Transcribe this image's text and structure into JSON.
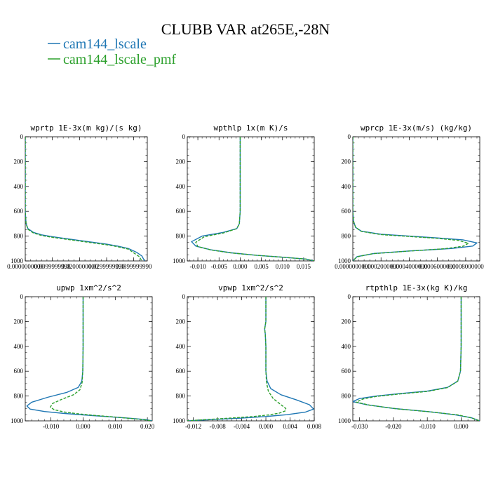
{
  "figure": {
    "title": "CLUBB VAR at265E,-28N",
    "legend": [
      {
        "label": "cam144_lscale",
        "color": "#1f77b4",
        "dash": "solid"
      },
      {
        "label": "cam144_lscale_pmf",
        "color": "#2ca02c",
        "dash": "dashed"
      }
    ]
  },
  "chart_data": [
    {
      "type": "line",
      "title": "wprtp  1E-3x(m kg)/(s kg)",
      "xlim": [
        0,
        0.045
      ],
      "ylim": [
        0,
        1000
      ],
      "y_inverted": true,
      "xticks": [
        0,
        0.01,
        0.02,
        0.03,
        0.04
      ],
      "xtick_labels": [
        "0.0000000000",
        "0.0099999998",
        "0.0200000000",
        "0.0299999990",
        "0.0399999990"
      ],
      "yticks": [
        0,
        200,
        400,
        600,
        800,
        1000
      ],
      "ytick_labels": [
        "0",
        "200",
        "400",
        "600",
        "800",
        "1000"
      ],
      "series": [
        {
          "name": "cam144_lscale",
          "x": [
            0,
            0,
            0,
            0,
            0.0003,
            0.001,
            0.003,
            0.006,
            0.01,
            0.015,
            0.02,
            0.025,
            0.03,
            0.034,
            0.038,
            0.041,
            0.043,
            0.044
          ],
          "y": [
            0,
            200,
            400,
            600,
            700,
            740,
            770,
            790,
            805,
            820,
            835,
            850,
            865,
            880,
            900,
            930,
            960,
            1000
          ]
        },
        {
          "name": "cam144_lscale_pmf",
          "x": [
            0,
            0,
            0,
            0,
            0.0003,
            0.001,
            0.003,
            0.006,
            0.01,
            0.015,
            0.02,
            0.025,
            0.03,
            0.034,
            0.038,
            0.04,
            0.042,
            0.043
          ],
          "y": [
            0,
            200,
            400,
            600,
            700,
            745,
            775,
            795,
            810,
            825,
            840,
            855,
            870,
            885,
            905,
            935,
            965,
            1000
          ]
        }
      ]
    },
    {
      "type": "line",
      "title": "wpthlp  1x(m K)/s",
      "xlim": [
        -0.0125,
        0.0175
      ],
      "ylim": [
        0,
        1000
      ],
      "y_inverted": true,
      "xticks": [
        -0.01,
        -0.005,
        0,
        0.005,
        0.01,
        0.015
      ],
      "xtick_labels": [
        "-0.010",
        "-0.005",
        "0.000",
        "0.005",
        "0.010",
        "0.015"
      ],
      "yticks": [
        0,
        200,
        400,
        600,
        800,
        1000
      ],
      "ytick_labels": [
        "0",
        "200",
        "400",
        "600",
        "800",
        "1000"
      ],
      "series": [
        {
          "name": "cam144_lscale",
          "x": [
            0,
            0,
            0,
            0,
            -0.0002,
            -0.0008,
            -0.004,
            -0.009,
            -0.0115,
            -0.0105,
            -0.007,
            -0.002,
            0.004,
            0.01,
            0.0155,
            0.0175
          ],
          "y": [
            0,
            200,
            400,
            600,
            700,
            740,
            770,
            800,
            845,
            880,
            910,
            935,
            955,
            970,
            985,
            1000
          ]
        },
        {
          "name": "cam144_lscale_pmf",
          "x": [
            0,
            0,
            0,
            0,
            -0.0002,
            -0.0008,
            -0.004,
            -0.0085,
            -0.0105,
            -0.01,
            -0.0068,
            -0.002,
            0.004,
            0.01,
            0.0155,
            0.0175
          ],
          "y": [
            0,
            200,
            400,
            600,
            700,
            740,
            775,
            805,
            850,
            885,
            912,
            936,
            955,
            970,
            985,
            1000
          ]
        }
      ]
    },
    {
      "type": "line",
      "title": "wprcp  1E-3x(m/s) (kg/kg)",
      "xlim": [
        0,
        0.0009
      ],
      "ylim": [
        0,
        1000
      ],
      "y_inverted": true,
      "xticks": [
        0,
        0.0002,
        0.0004,
        0.0006,
        0.0008
      ],
      "xtick_labels": [
        "0.0000000000",
        "0.0002000000",
        "0.0004000000",
        "0.0006000000",
        "0.0008000000"
      ],
      "yticks": [
        0,
        200,
        400,
        600,
        800,
        1000
      ],
      "ytick_labels": [
        "0",
        "200",
        "400",
        "600",
        "800",
        "1000"
      ],
      "series": [
        {
          "name": "cam144_lscale",
          "x": [
            0,
            0,
            0,
            0,
            5e-06,
            2e-05,
            6e-05,
            0.0002,
            0.0004,
            0.0006,
            0.00078,
            0.00088,
            0.00085,
            0.0007,
            0.0004,
            0.00015,
            3e-05,
            0
          ],
          "y": [
            0,
            200,
            400,
            600,
            680,
            730,
            760,
            785,
            800,
            815,
            830,
            855,
            880,
            900,
            920,
            940,
            965,
            1000
          ]
        },
        {
          "name": "cam144_lscale_pmf",
          "x": [
            0,
            0,
            0,
            0,
            5e-06,
            2e-05,
            6e-05,
            0.0002,
            0.0004,
            0.0006,
            0.00075,
            0.00082,
            0.00078,
            0.00065,
            0.00038,
            0.00014,
            3e-05,
            0
          ],
          "y": [
            0,
            200,
            400,
            600,
            680,
            730,
            762,
            788,
            803,
            818,
            835,
            858,
            882,
            902,
            922,
            942,
            967,
            1000
          ]
        }
      ]
    },
    {
      "type": "line",
      "title": "upwp  1xm^2/s^2",
      "xlim": [
        -0.018,
        0.0215
      ],
      "ylim": [
        0,
        1000
      ],
      "y_inverted": true,
      "xticks": [
        -0.01,
        0,
        0.01,
        0.02
      ],
      "xtick_labels": [
        "-0.010",
        "0.000",
        "0.010",
        "0.020"
      ],
      "yticks": [
        0,
        200,
        400,
        600,
        800,
        1000
      ],
      "ytick_labels": [
        "0",
        "200",
        "400",
        "600",
        "800",
        "1000"
      ],
      "series": [
        {
          "name": "cam144_lscale",
          "x": [
            0,
            0,
            0,
            -0.0001,
            -0.0004,
            -0.0015,
            -0.005,
            -0.011,
            -0.016,
            -0.0175,
            -0.0165,
            -0.012,
            -0.006,
            0,
            0.007,
            0.014,
            0.0195,
            0.0215
          ],
          "y": [
            0,
            200,
            400,
            600,
            680,
            730,
            770,
            810,
            850,
            880,
            905,
            925,
            940,
            952,
            965,
            978,
            990,
            1000
          ]
        },
        {
          "name": "cam144_lscale_pmf",
          "x": [
            0,
            0,
            0,
            -0.0001,
            -0.0003,
            -0.001,
            -0.003,
            -0.0065,
            -0.0095,
            -0.0102,
            -0.009,
            -0.006,
            -0.002,
            0.003,
            0.009,
            0.0145,
            0.019,
            0.0215
          ],
          "y": [
            0,
            200,
            400,
            600,
            690,
            750,
            790,
            825,
            860,
            890,
            910,
            928,
            942,
            955,
            967,
            980,
            991,
            1000
          ]
        }
      ]
    },
    {
      "type": "line",
      "title": "vpwp  1xm^2/s^2",
      "xlim": [
        -0.013,
        0.008
      ],
      "ylim": [
        0,
        1000
      ],
      "y_inverted": true,
      "xticks": [
        -0.012,
        -0.008,
        -0.004,
        0,
        0.004,
        0.008
      ],
      "xtick_labels": [
        "-0.012",
        "-0.008",
        "-0.004",
        "0.000",
        "0.004",
        "0.008"
      ],
      "yticks": [
        0,
        200,
        400,
        600,
        800,
        1000
      ],
      "ytick_labels": [
        "0",
        "200",
        "400",
        "600",
        "800",
        "1000"
      ],
      "series": [
        {
          "name": "cam144_lscale",
          "x": [
            0,
            0,
            -0.0002,
            -0.0001,
            0,
            0,
            0.0002,
            0.0008,
            0.0025,
            0.005,
            0.0072,
            0.0079,
            0.0065,
            0.0035,
            0,
            -0.004,
            -0.009,
            -0.013
          ],
          "y": [
            0,
            200,
            260,
            300,
            400,
            600,
            680,
            740,
            790,
            830,
            870,
            905,
            930,
            950,
            965,
            978,
            990,
            1000
          ]
        },
        {
          "name": "cam144_lscale_pmf",
          "x": [
            0,
            0,
            -0.0002,
            -0.0001,
            0,
            0,
            0.0001,
            0.0004,
            0.0012,
            0.0025,
            0.0033,
            0.0032,
            0.0022,
            0.0005,
            -0.002,
            -0.006,
            -0.01,
            -0.013
          ],
          "y": [
            0,
            200,
            260,
            300,
            400,
            600,
            690,
            760,
            820,
            870,
            900,
            920,
            938,
            952,
            965,
            978,
            990,
            1000
          ]
        }
      ]
    },
    {
      "type": "line",
      "title": "rtpthlp  1E-3x(kg K)/kg",
      "xlim": [
        -0.032,
        0.0055
      ],
      "ylim": [
        0,
        1000
      ],
      "y_inverted": true,
      "xticks": [
        -0.03,
        -0.02,
        -0.01,
        0
      ],
      "xtick_labels": [
        "-0.030",
        "-0.020",
        "-0.010",
        "0.000"
      ],
      "yticks": [
        0,
        200,
        400,
        600,
        800,
        1000
      ],
      "ytick_labels": [
        "0",
        "200",
        "400",
        "600",
        "800",
        "1000"
      ],
      "series": [
        {
          "name": "cam144_lscale",
          "x": [
            0,
            0,
            0,
            -0.0002,
            -0.001,
            -0.004,
            -0.01,
            -0.018,
            -0.025,
            -0.03,
            -0.032,
            -0.028,
            -0.02,
            -0.01,
            -0.002,
            0.003,
            0.0055
          ],
          "y": [
            0,
            200,
            400,
            600,
            680,
            730,
            760,
            780,
            800,
            820,
            845,
            870,
            900,
            925,
            950,
            975,
            1000
          ]
        },
        {
          "name": "cam144_lscale_pmf",
          "x": [
            0,
            0,
            0,
            -0.0002,
            -0.001,
            -0.004,
            -0.01,
            -0.018,
            -0.025,
            -0.029,
            -0.031,
            -0.027,
            -0.019,
            -0.009,
            -0.001,
            0.003,
            0.0055
          ],
          "y": [
            0,
            200,
            400,
            600,
            680,
            732,
            763,
            783,
            803,
            824,
            849,
            874,
            903,
            928,
            952,
            976,
            1000
          ]
        }
      ]
    }
  ]
}
